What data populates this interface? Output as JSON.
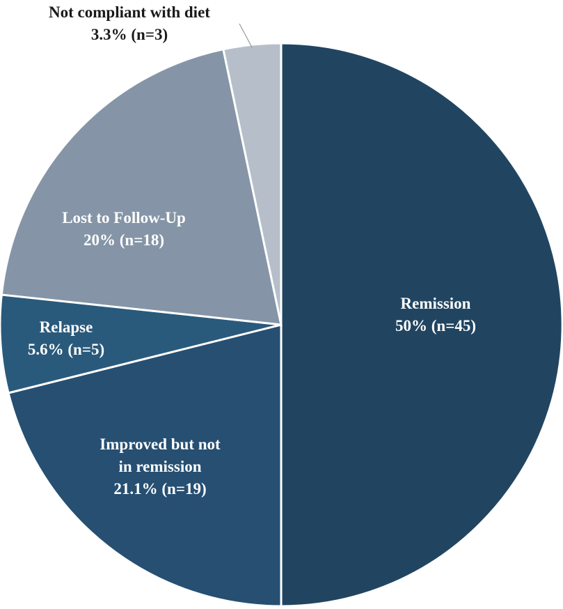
{
  "chart_data": {
    "type": "pie",
    "title": "",
    "slices": [
      {
        "label": "Remission",
        "value": 50,
        "n": 45,
        "text": [
          "Remission",
          "50% (n=45)"
        ],
        "color": "#214561"
      },
      {
        "label": "Improved but not in remission",
        "value": 21.1,
        "n": 19,
        "text": [
          "Improved but not",
          "in remission",
          "21.1% (n=19)"
        ],
        "color": "#264f72"
      },
      {
        "label": "Relapse",
        "value": 5.6,
        "n": 5,
        "text": [
          "Relapse",
          "5.6% (n=5)"
        ],
        "color": "#2a5a7b"
      },
      {
        "label": "Lost to Follow-Up",
        "value": 20,
        "n": 18,
        "text": [
          "Lost to Follow-Up",
          "20% (n=18)"
        ],
        "color": "#8595a7"
      },
      {
        "label": "Not compliant with diet",
        "value": 3.3,
        "n": 3,
        "text": [
          "Not compliant with diet",
          "3.3% (n=3)"
        ],
        "color": "#b6bfc9"
      }
    ]
  }
}
